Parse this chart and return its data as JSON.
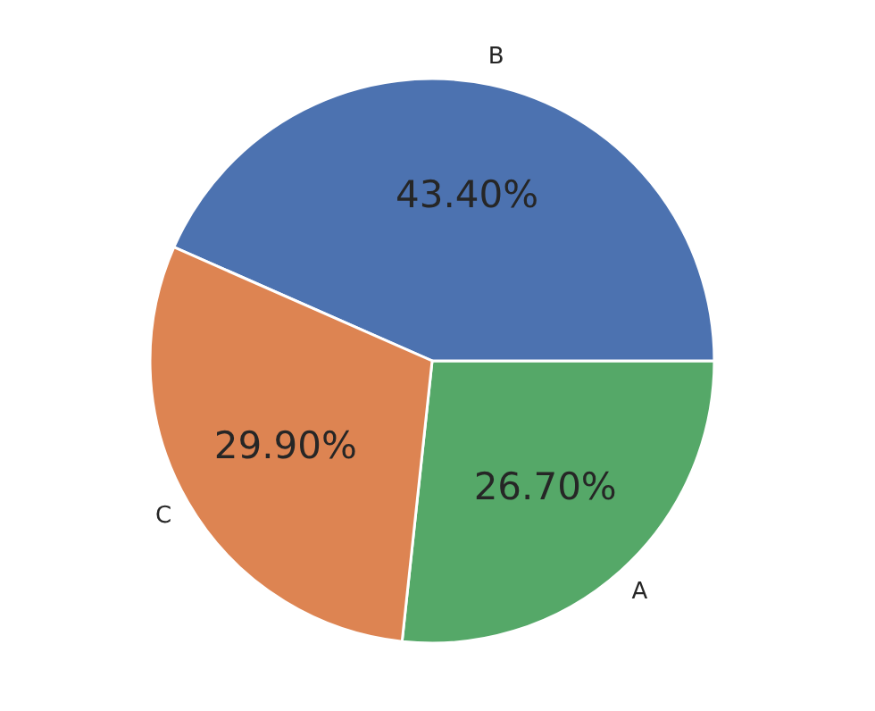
{
  "chart_data": {
    "type": "pie",
    "categories": [
      "A",
      "B",
      "C"
    ],
    "values": [
      26.7,
      43.4,
      29.9
    ],
    "colors": [
      "#55a868",
      "#4c72b0",
      "#dd8452"
    ],
    "value_labels": [
      "26.70%",
      "43.40%",
      "29.90%"
    ]
  }
}
